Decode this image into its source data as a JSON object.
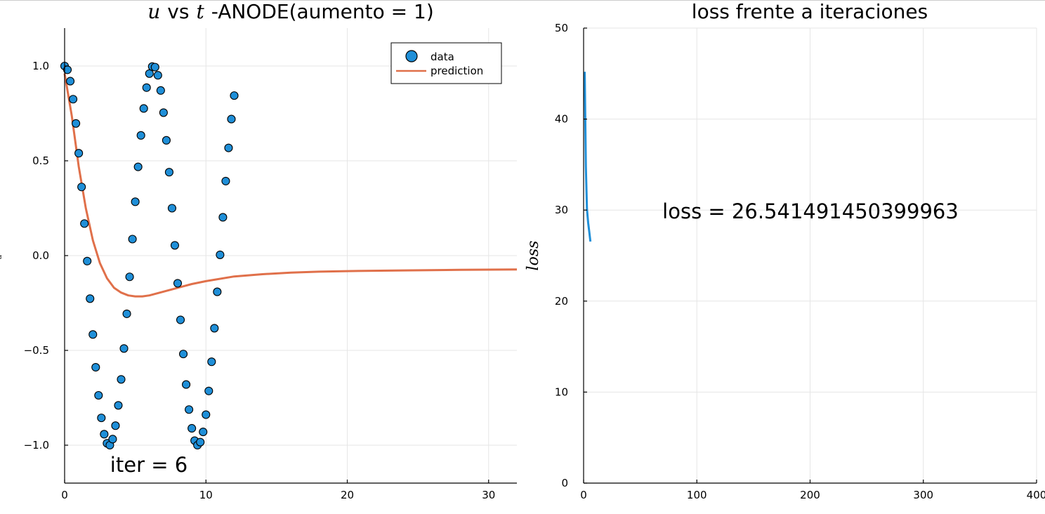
{
  "chart_data": [
    {
      "type": "scatter+line",
      "title_sym_1": "u",
      "title_vs": "vs",
      "title_sym_2": "t",
      "title_rest": "-ANODE(aumento = 1)",
      "xlim": [
        0,
        32
      ],
      "ylim": [
        -1.2,
        1.2
      ],
      "xticks": [
        0,
        10,
        20,
        30
      ],
      "xtick_labels": [
        "0",
        "10",
        "20",
        "30"
      ],
      "yticks": [
        -1.0,
        -0.5,
        0.0,
        0.5,
        1.0
      ],
      "ytick_labels": [
        "−1.0",
        "−0.5",
        "0.0",
        "0.5",
        "1.0"
      ],
      "ylabel": "u",
      "grid": true,
      "legend_position": "top-right",
      "annotation": "iter = 6",
      "colors": {
        "data": "#1f8fd8",
        "prediction": "#e0704a"
      },
      "series": [
        {
          "name": "data",
          "kind": "scatter",
          "x": [
            0.0,
            0.2,
            0.4,
            0.6,
            0.8,
            1.0,
            1.2,
            1.4,
            1.6,
            1.8,
            2.0,
            2.2,
            2.4,
            2.6,
            2.8,
            3.0,
            3.2,
            3.4,
            3.6,
            3.8,
            4.0,
            4.2,
            4.4,
            4.6,
            4.8,
            5.0,
            5.2,
            5.4,
            5.6,
            5.8,
            6.0,
            6.2,
            6.4,
            6.6,
            6.8,
            7.0,
            7.2,
            7.4,
            7.6,
            7.8,
            8.0,
            8.2,
            8.4,
            8.6,
            8.8,
            9.0,
            9.2,
            9.4,
            9.6,
            9.8,
            10.0,
            10.2,
            10.4,
            10.6,
            10.8,
            11.0,
            11.2,
            11.4,
            11.6,
            11.8,
            12.0
          ],
          "y": [
            1.0,
            0.98,
            0.92,
            0.825,
            0.697,
            0.54,
            0.362,
            0.169,
            -0.029,
            -0.227,
            -0.416,
            -0.589,
            -0.737,
            -0.856,
            -0.942,
            -0.99,
            -1.0,
            -0.968,
            -0.897,
            -0.79,
            -0.653,
            -0.49,
            -0.307,
            -0.112,
            0.087,
            0.284,
            0.468,
            0.634,
            0.776,
            0.886,
            0.96,
            0.997,
            0.994,
            0.951,
            0.871,
            0.754,
            0.608,
            0.44,
            0.25,
            0.054,
            -0.146,
            -0.339,
            -0.519,
            -0.68,
            -0.812,
            -0.911,
            -0.976,
            -1.0,
            -0.984,
            -0.93,
            -0.839,
            -0.714,
            -0.56,
            -0.383,
            -0.191,
            0.004,
            0.202,
            0.393,
            0.568,
            0.72,
            0.844
          ]
        },
        {
          "name": "prediction",
          "kind": "line",
          "x": [
            0.0,
            0.5,
            1.0,
            1.5,
            2.0,
            2.5,
            3.0,
            3.5,
            4.0,
            4.5,
            5.0,
            5.5,
            6.0,
            7.0,
            8.0,
            9.0,
            10.0,
            12.0,
            14.0,
            16.0,
            18.0,
            20.0,
            24.0,
            28.0,
            32.0
          ],
          "y": [
            0.96,
            0.74,
            0.47,
            0.25,
            0.08,
            -0.04,
            -0.12,
            -0.17,
            -0.195,
            -0.21,
            -0.215,
            -0.215,
            -0.21,
            -0.19,
            -0.17,
            -0.15,
            -0.135,
            -0.11,
            -0.098,
            -0.09,
            -0.085,
            -0.082,
            -0.078,
            -0.075,
            -0.073
          ]
        }
      ]
    },
    {
      "type": "line",
      "title": "loss frente a iteraciones",
      "xlim": [
        0,
        400
      ],
      "ylim": [
        0,
        50
      ],
      "xticks": [
        0,
        100,
        200,
        300,
        400
      ],
      "xtick_labels": [
        "0",
        "100",
        "200",
        "300",
        "400"
      ],
      "yticks": [
        0,
        10,
        20,
        30,
        40,
        50
      ],
      "ytick_labels": [
        "0",
        "10",
        "20",
        "30",
        "40",
        "50"
      ],
      "ylabel": "loss",
      "grid": true,
      "annotation": "loss = 26.541491450399963",
      "colors": {
        "loss": "#1f8fd8"
      },
      "series": [
        {
          "name": "loss",
          "x": [
            1,
            2,
            3,
            4,
            5,
            6
          ],
          "y": [
            45.2,
            34.8,
            30.1,
            28.6,
            27.6,
            26.54
          ]
        }
      ]
    }
  ]
}
